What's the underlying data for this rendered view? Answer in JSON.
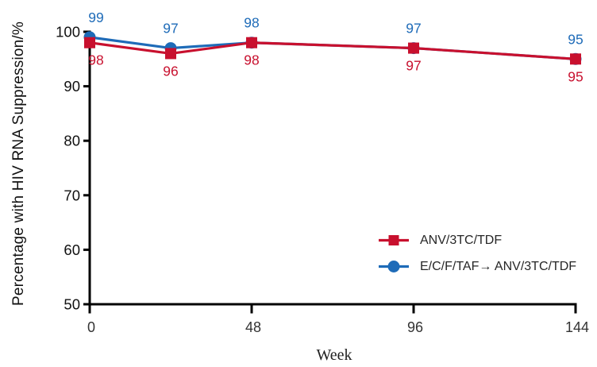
{
  "figure": {
    "background": "#FFFFFF"
  },
  "chart_data": {
    "type": "line",
    "title": "",
    "xlabel": "Week",
    "ylabel": "Percentage with HIV RNA Suppression/%",
    "x": [
      0,
      24,
      48,
      96,
      144
    ],
    "xlim": [
      0,
      144
    ],
    "ylim": [
      50,
      100
    ],
    "x_ticks": [
      0,
      48,
      96,
      144
    ],
    "y_ticks": [
      100,
      90,
      80,
      70,
      60,
      50
    ],
    "grid": false,
    "legend_position": "lower right",
    "series": [
      {
        "name": "E/C/F/TAF→ ANV/3TC/TDF",
        "marker": "circle",
        "color": "#1E6BB8",
        "values": [
          99,
          97,
          98,
          97,
          95
        ],
        "data_labels": [
          "99",
          "97",
          "98",
          "97",
          "95"
        ],
        "label_position": "above"
      },
      {
        "name": "ANV/3TC/TDF",
        "marker": "square",
        "color": "#C8102E",
        "values": [
          98,
          96,
          98,
          97,
          95
        ],
        "data_labels": [
          "98",
          "96",
          "98",
          "97",
          "95"
        ],
        "label_position": "below"
      }
    ]
  },
  "legend": {
    "items": [
      {
        "label": "ANV/3TC/TDF",
        "marker": "square-icon",
        "color": "#C8102E"
      },
      {
        "label": "E/C/F/TAF→ ANV/3TC/TDF",
        "marker": "circle-icon",
        "color": "#1E6BB8"
      }
    ]
  },
  "colors": {
    "axis": "#000000",
    "y_tick_text": "#111111",
    "x_tick_text": "#333333",
    "legend_text": "#262626",
    "background": "#FFFFFF"
  }
}
